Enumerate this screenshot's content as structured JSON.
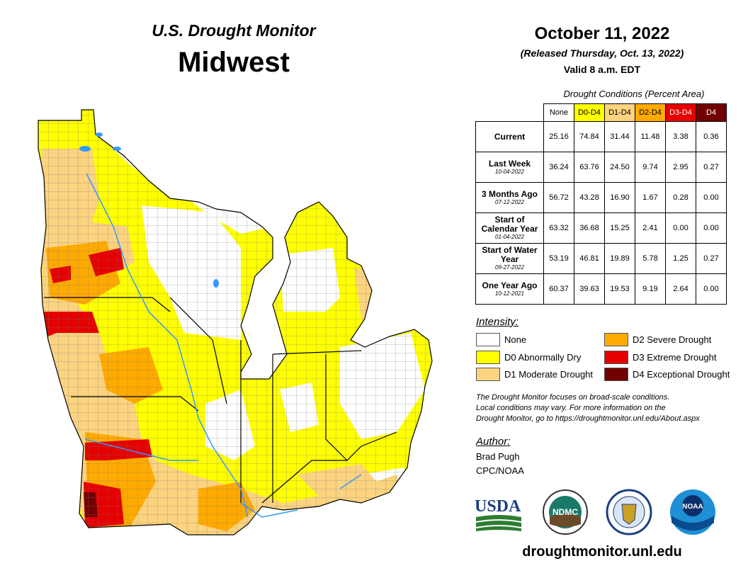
{
  "header": {
    "subtitle": "U.S. Drought Monitor",
    "region": "Midwest",
    "date": "October 11, 2022",
    "released": "(Released Thursday, Oct. 13, 2022)",
    "valid": "Valid 8 a.m. EDT"
  },
  "table": {
    "caption": "Drought Conditions (Percent Area)",
    "columns": [
      {
        "label": "None",
        "color": "#ffffff",
        "text_color": "#000000"
      },
      {
        "label": "D0-D4",
        "color": "#ffff00",
        "text_color": "#000000"
      },
      {
        "label": "D1-D4",
        "color": "#fcd37f",
        "text_color": "#000000"
      },
      {
        "label": "D2-D4",
        "color": "#ffaa00",
        "text_color": "#000000"
      },
      {
        "label": "D3-D4",
        "color": "#e60000",
        "text_color": "#ffffff"
      },
      {
        "label": "D4",
        "color": "#730000",
        "text_color": "#ffffff"
      }
    ],
    "rows": [
      {
        "label": "Current",
        "date": "",
        "values": [
          "25.16",
          "74.84",
          "31.44",
          "11.48",
          "3.38",
          "0.36"
        ]
      },
      {
        "label": "Last Week",
        "date": "10-04-2022",
        "values": [
          "36.24",
          "63.76",
          "24.50",
          "9.74",
          "2.95",
          "0.27"
        ]
      },
      {
        "label": "3 Months Ago",
        "date": "07-12-2022",
        "values": [
          "56.72",
          "43.28",
          "16.90",
          "1.67",
          "0.28",
          "0.00"
        ]
      },
      {
        "label": "Start of Calendar Year",
        "date": "01-04-2022",
        "values": [
          "63.32",
          "36.68",
          "15.25",
          "2.41",
          "0.00",
          "0.00"
        ]
      },
      {
        "label": "Start of Water Year",
        "date": "09-27-2022",
        "values": [
          "53.19",
          "46.81",
          "19.89",
          "5.78",
          "1.25",
          "0.27"
        ]
      },
      {
        "label": "One Year Ago",
        "date": "10-12-2021",
        "values": [
          "60.37",
          "39.63",
          "19.53",
          "9.19",
          "2.64",
          "0.00"
        ]
      }
    ]
  },
  "legend": {
    "title": "Intensity:",
    "items": [
      {
        "label": "None",
        "color": "#ffffff"
      },
      {
        "label": "D0 Abnormally Dry",
        "color": "#ffff00"
      },
      {
        "label": "D1 Moderate Drought",
        "color": "#fcd37f"
      },
      {
        "label": "D2 Severe Drought",
        "color": "#ffaa00"
      },
      {
        "label": "D3 Extreme Drought",
        "color": "#e60000"
      },
      {
        "label": "D4 Exceptional Drought",
        "color": "#730000"
      }
    ]
  },
  "note": {
    "line1": "The Drought Monitor focuses on broad-scale conditions.",
    "line2": "Local conditions may vary. For more information on the",
    "line3": "Drought Monitor, go to https://droughtmonitor.unl.edu/About.aspx"
  },
  "author": {
    "title": "Author:",
    "name": "Brad Pugh",
    "org": "CPC/NOAA"
  },
  "logos": {
    "usda": "USDA",
    "ndmc": "NDMC",
    "noaa": "NOAA"
  },
  "footer": {
    "url": "droughtmonitor.unl.edu"
  }
}
